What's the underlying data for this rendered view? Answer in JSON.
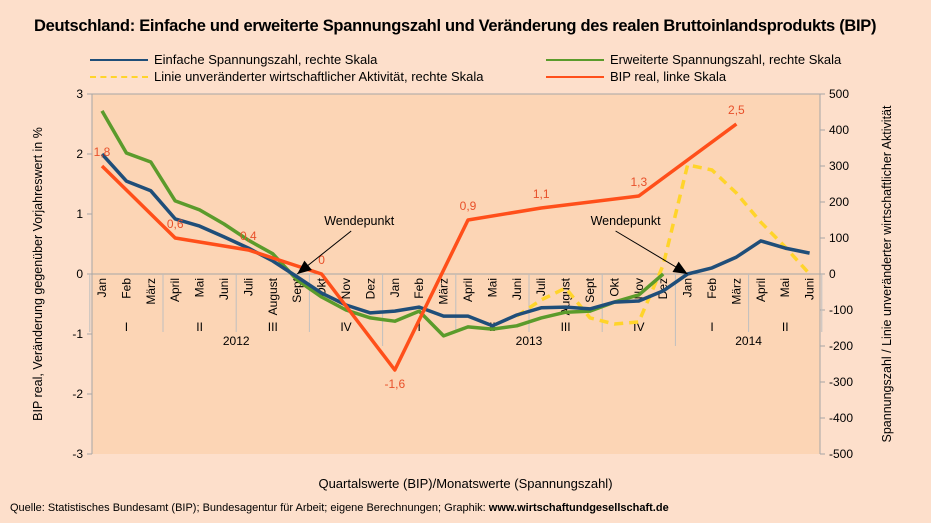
{
  "chart_data": {
    "type": "line",
    "title": "Deutschland: Einfache und erweiterte Spannungszahl und Veränderung des realen Bruttoinlandsprodukts (BIP)",
    "xlabel": "Quartalswerte (BIP)/Monatswerte (Spannungszahl)",
    "ylabel_left": "BIP real, Veränderung gegenüber Vorjahreswert in %",
    "ylabel_right": "Spannungszahl / Linie unveränderter wirtschaftlicher Aktivität",
    "ylim_left": [
      -3,
      3
    ],
    "yticks_left": [
      "3",
      "2",
      "1",
      "0",
      "-1",
      "-2",
      "-3"
    ],
    "ylim_right": [
      -500,
      500
    ],
    "yticks_right": [
      "500",
      "400",
      "300",
      "200",
      "100",
      "0",
      "-100",
      "-200",
      "-300",
      "-400",
      "-500"
    ],
    "months": [
      "Jan",
      "Feb",
      "März",
      "April",
      "Mai",
      "Juni",
      "Juli",
      "August",
      "Sept",
      "Okt",
      "Nov",
      "Dez",
      "Jan",
      "Feb",
      "März",
      "April",
      "Mai",
      "Juni",
      "Juli",
      "August",
      "Sept",
      "Okt",
      "Nov",
      "Dez",
      "Jan",
      "Feb",
      "März",
      "April",
      "Mai",
      "Juni"
    ],
    "quarters": [
      "I",
      "II",
      "III",
      "IV",
      "I",
      "II",
      "III",
      "IV",
      "I",
      "II"
    ],
    "years": [
      "2012",
      "2013",
      "2014"
    ],
    "legend_position": "top",
    "grid": false,
    "series": [
      {
        "name": "Einfache Spannungszahl, rechte Skala",
        "axis": "right",
        "color": "#1F4E79",
        "dashed": false,
        "values": [
          333,
          258,
          231,
          153,
          133,
          103,
          72,
          36,
          -8,
          -53,
          -86,
          -108,
          -103,
          -92,
          -117,
          -117,
          -144,
          -114,
          -94,
          -92,
          -97,
          -78,
          -75,
          -47,
          0,
          17,
          47,
          92,
          72,
          58
        ]
      },
      {
        "name": "Erweiterte Spannungszahl, rechte Skala",
        "axis": "right",
        "color": "#5B9B2B",
        "dashed": false,
        "values": [
          453,
          336,
          311,
          203,
          178,
          139,
          94,
          56,
          -17,
          -64,
          -100,
          -122,
          -131,
          -103,
          -172,
          -147,
          -153,
          -144,
          -122,
          -106,
          -103,
          -78,
          -58,
          0,
          null,
          null,
          null,
          null,
          null,
          null
        ]
      },
      {
        "name": "Linie unveränderter wirtschaftlicher Aktivität, rechte Skala",
        "axis": "right",
        "color": "#FFD42A",
        "dashed": true,
        "values": [
          null,
          null,
          null,
          null,
          null,
          null,
          null,
          null,
          null,
          null,
          null,
          null,
          null,
          null,
          null,
          null,
          null,
          -117,
          -72,
          -39,
          -122,
          -139,
          -133,
          25,
          303,
          289,
          225,
          144,
          75,
          0
        ]
      },
      {
        "name": "BIP real, linke Skala",
        "axis": "left",
        "color": "#FF4F1A",
        "dashed": false,
        "points": [
          {
            "month_index": 0,
            "value": 1.8
          },
          {
            "month_index": 3,
            "value": 0.6
          },
          {
            "month_index": 6,
            "value": 0.4
          },
          {
            "month_index": 9,
            "value": 0
          },
          {
            "month_index": 12,
            "value": -1.6
          },
          {
            "month_index": 15,
            "value": 0.9
          },
          {
            "month_index": 18,
            "value": 1.1
          },
          {
            "month_index": 22,
            "value": 1.3
          },
          {
            "month_index": 26,
            "value": 2.5
          }
        ],
        "labels": [
          "1,8",
          "0,6",
          "0,4",
          "0",
          "-1,6",
          "0,9",
          "1,1",
          "1,3",
          "2,5"
        ]
      }
    ],
    "annotations": [
      {
        "text": "Wendepunkt",
        "month_index": 8
      },
      {
        "text": "Wendepunkt",
        "month_index": 24
      }
    ]
  },
  "source": {
    "text": "Quelle: Statistisches Bundesamt (BIP); Bundesagentur für Arbeit; eigene Berechnungen; Graphik: ",
    "link": "www.wirtschaftundgesellschaft.de"
  }
}
